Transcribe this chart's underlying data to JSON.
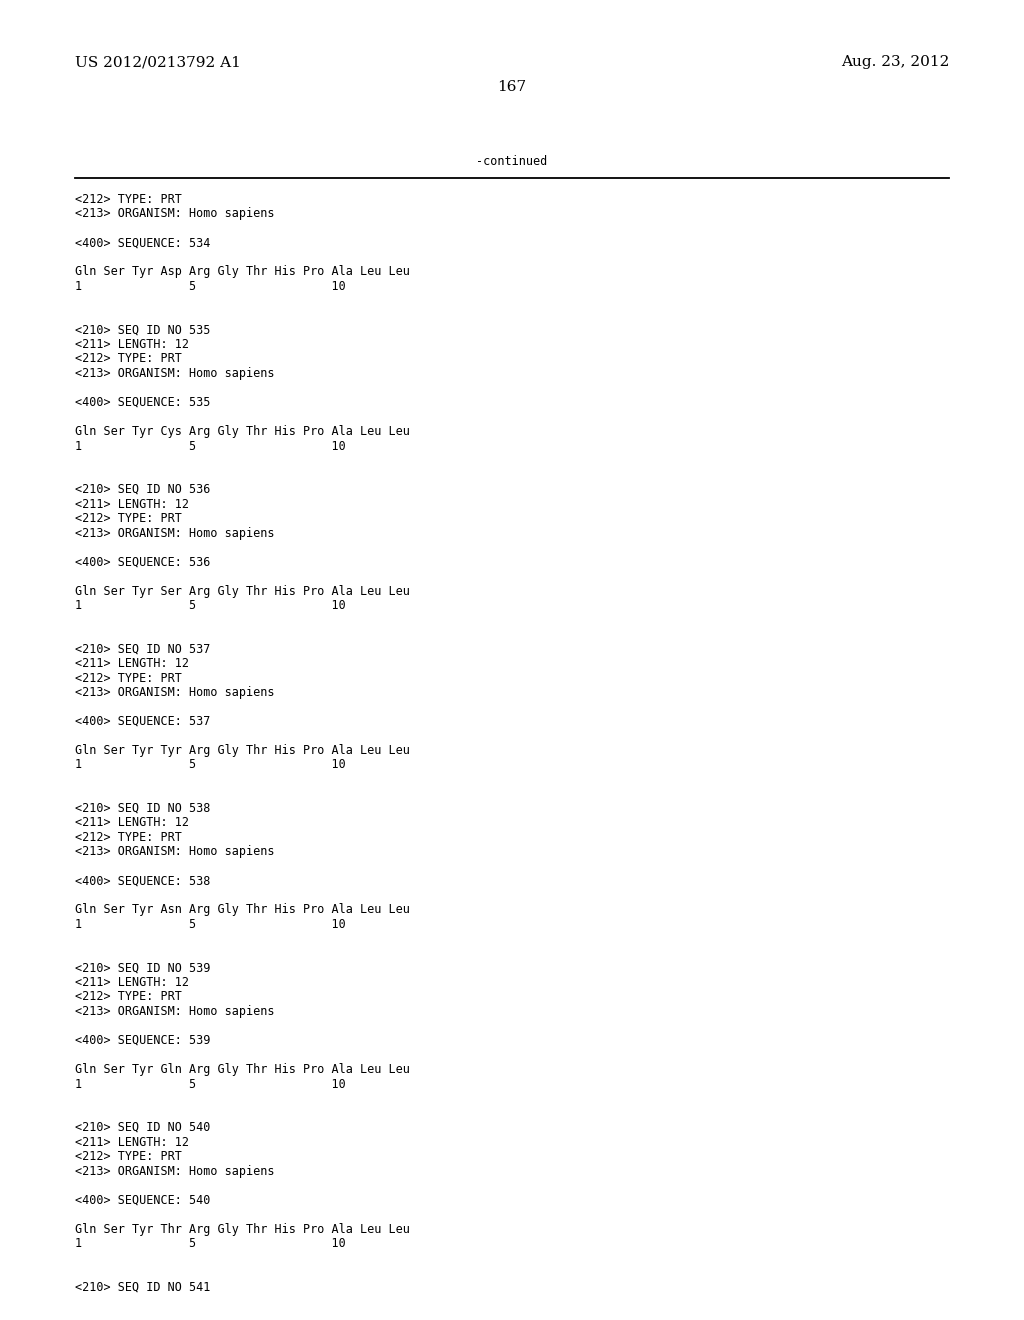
{
  "page_number": "167",
  "left_header": "US 2012/0213792 A1",
  "right_header": "Aug. 23, 2012",
  "continued_label": "-continued",
  "background_color": "#ffffff",
  "text_color": "#000000",
  "font_size_header": 11,
  "font_size_body": 8.5,
  "lines": [
    "<212> TYPE: PRT",
    "<213> ORGANISM: Homo sapiens",
    "",
    "<400> SEQUENCE: 534",
    "",
    "Gln Ser Tyr Asp Arg Gly Thr His Pro Ala Leu Leu",
    "1               5                   10",
    "",
    "",
    "<210> SEQ ID NO 535",
    "<211> LENGTH: 12",
    "<212> TYPE: PRT",
    "<213> ORGANISM: Homo sapiens",
    "",
    "<400> SEQUENCE: 535",
    "",
    "Gln Ser Tyr Cys Arg Gly Thr His Pro Ala Leu Leu",
    "1               5                   10",
    "",
    "",
    "<210> SEQ ID NO 536",
    "<211> LENGTH: 12",
    "<212> TYPE: PRT",
    "<213> ORGANISM: Homo sapiens",
    "",
    "<400> SEQUENCE: 536",
    "",
    "Gln Ser Tyr Ser Arg Gly Thr His Pro Ala Leu Leu",
    "1               5                   10",
    "",
    "",
    "<210> SEQ ID NO 537",
    "<211> LENGTH: 12",
    "<212> TYPE: PRT",
    "<213> ORGANISM: Homo sapiens",
    "",
    "<400> SEQUENCE: 537",
    "",
    "Gln Ser Tyr Tyr Arg Gly Thr His Pro Ala Leu Leu",
    "1               5                   10",
    "",
    "",
    "<210> SEQ ID NO 538",
    "<211> LENGTH: 12",
    "<212> TYPE: PRT",
    "<213> ORGANISM: Homo sapiens",
    "",
    "<400> SEQUENCE: 538",
    "",
    "Gln Ser Tyr Asn Arg Gly Thr His Pro Ala Leu Leu",
    "1               5                   10",
    "",
    "",
    "<210> SEQ ID NO 539",
    "<211> LENGTH: 12",
    "<212> TYPE: PRT",
    "<213> ORGANISM: Homo sapiens",
    "",
    "<400> SEQUENCE: 539",
    "",
    "Gln Ser Tyr Gln Arg Gly Thr His Pro Ala Leu Leu",
    "1               5                   10",
    "",
    "",
    "<210> SEQ ID NO 540",
    "<211> LENGTH: 12",
    "<212> TYPE: PRT",
    "<213> ORGANISM: Homo sapiens",
    "",
    "<400> SEQUENCE: 540",
    "",
    "Gln Ser Tyr Thr Arg Gly Thr His Pro Ala Leu Leu",
    "1               5                   10",
    "",
    "",
    "<210> SEQ ID NO 541"
  ]
}
